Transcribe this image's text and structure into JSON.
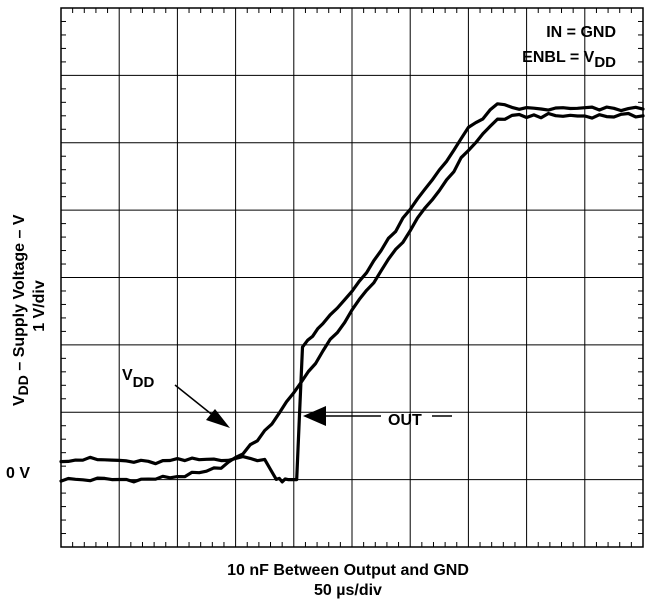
{
  "chart_data": {
    "type": "line",
    "title": "",
    "xlabel": "10 nF Between Output and GND",
    "xscale": "50 µs/div",
    "ylabel_parts": [
      "V",
      "DD",
      " – Supply Voltage – V"
    ],
    "yscale": "1 V/div",
    "conditions": [
      "IN = GND",
      "ENBL = V_DD"
    ],
    "grid": true,
    "divisions": {
      "x": 10,
      "y": 8
    },
    "xlim_div": [
      0,
      10
    ],
    "ylim_div": [
      -1,
      7
    ],
    "zero_label": "0 V",
    "annotations": [
      {
        "text_main": "V",
        "text_sub": "DD",
        "target": "VDD"
      },
      {
        "text_main": "OUT",
        "text_sub": "",
        "target": "OUT"
      }
    ],
    "series": [
      {
        "name": "VDD",
        "x_div": [
          0,
          0.5,
          1,
          1.5,
          2,
          2.5,
          3,
          3.5,
          4,
          4.5,
          5,
          5.5,
          6,
          6.5,
          7,
          7.5,
          8,
          8.5,
          9,
          9.5,
          10
        ],
        "y_div": [
          0.0,
          0.0,
          0.0,
          0.0,
          0.05,
          0.1,
          0.3,
          0.7,
          1.3,
          1.9,
          2.5,
          3.1,
          3.7,
          4.3,
          4.9,
          5.35,
          5.4,
          5.4,
          5.4,
          5.4,
          5.4
        ]
      },
      {
        "name": "OUT",
        "x_div": [
          0,
          0.5,
          1,
          1.5,
          2,
          2.5,
          3,
          3.5,
          3.6,
          3.7,
          3.9,
          4.0,
          4.05,
          4.1,
          4.15,
          4.5,
          5,
          5.5,
          6,
          6.5,
          7,
          7.5,
          8,
          8.5,
          9,
          9.5,
          10
        ],
        "y_div": [
          0.3,
          0.3,
          0.28,
          0.25,
          0.28,
          0.3,
          0.32,
          0.3,
          0.15,
          0.0,
          0.0,
          0.0,
          0.0,
          1.0,
          2.0,
          2.3,
          2.8,
          3.4,
          4.0,
          4.6,
          5.2,
          5.55,
          5.5,
          5.5,
          5.5,
          5.5,
          5.5
        ]
      }
    ]
  }
}
